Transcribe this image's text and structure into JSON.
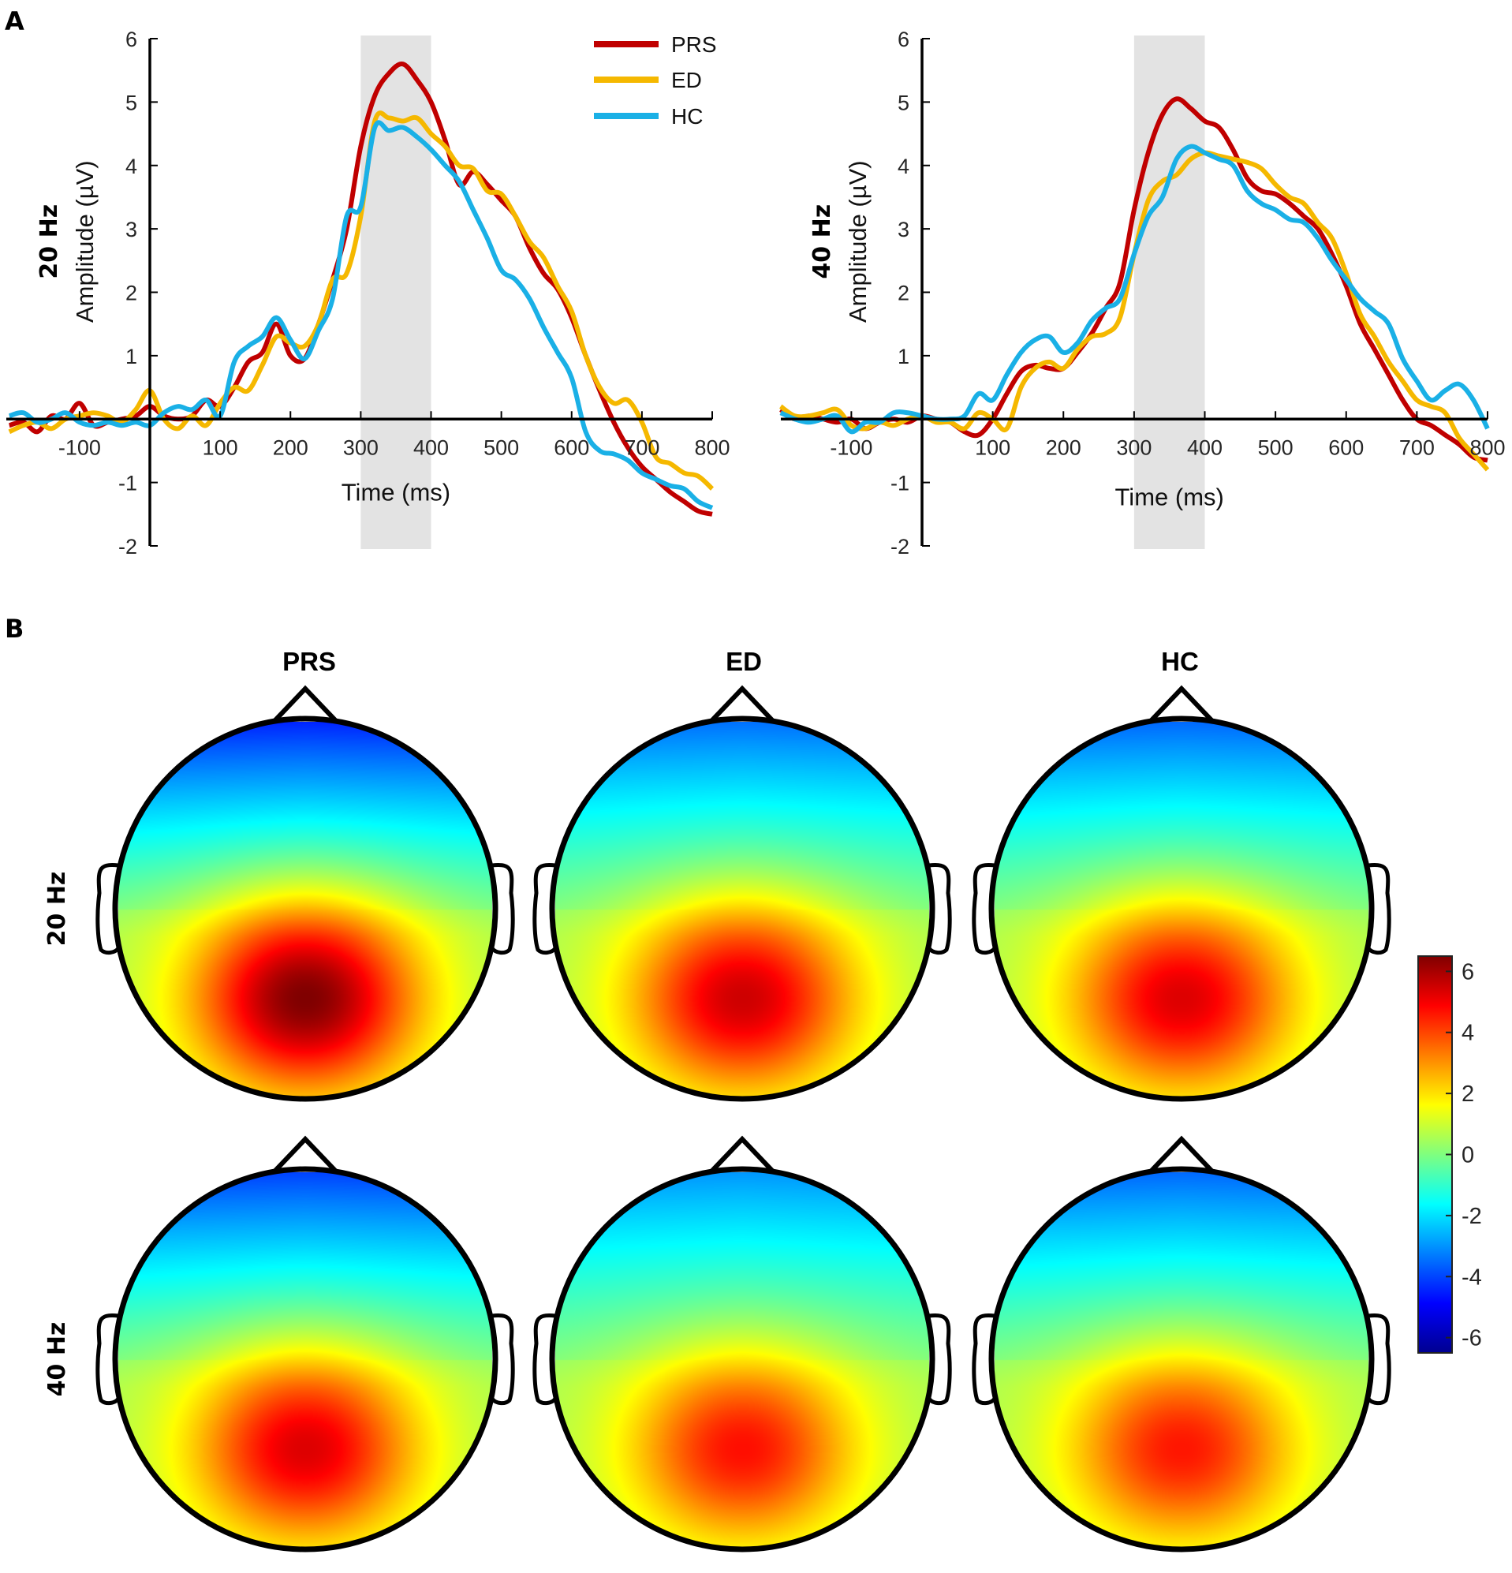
{
  "panel_labels": {
    "a": "A",
    "b": "B"
  },
  "legend": [
    {
      "name": "PRS",
      "color": "#C00000"
    },
    {
      "name": "ED",
      "color": "#F5B800"
    },
    {
      "name": "HC",
      "color": "#1AB0E6"
    }
  ],
  "chart_data": [
    {
      "type": "line",
      "id": "erp-20hz",
      "row_label": "20 Hz",
      "xlabel": "Time (ms)",
      "ylabel": "Amplitude (µV)",
      "xlim": [
        -200,
        800
      ],
      "ylim": [
        -2,
        6
      ],
      "xticks": [
        -100,
        100,
        200,
        300,
        400,
        500,
        600,
        700,
        800
      ],
      "yticks": [
        -2,
        -1,
        1,
        2,
        3,
        4,
        5,
        6
      ],
      "shaded_window": [
        300,
        400
      ],
      "grid": false,
      "legend_position": "top-right",
      "x": [
        -200,
        -180,
        -160,
        -140,
        -120,
        -100,
        -80,
        -60,
        -40,
        -20,
        0,
        20,
        40,
        60,
        80,
        100,
        120,
        140,
        160,
        180,
        200,
        220,
        240,
        260,
        280,
        300,
        320,
        340,
        360,
        380,
        400,
        420,
        440,
        460,
        480,
        500,
        520,
        540,
        560,
        580,
        600,
        620,
        640,
        660,
        680,
        700,
        720,
        740,
        760,
        780,
        800
      ],
      "series": [
        {
          "name": "PRS",
          "values": [
            -0.1,
            -0.05,
            -0.2,
            0.05,
            0.0,
            0.25,
            -0.1,
            -0.05,
            0.0,
            0.05,
            0.2,
            0.05,
            0.0,
            0.05,
            0.3,
            0.2,
            0.5,
            0.9,
            1.05,
            1.5,
            1.0,
            0.95,
            1.5,
            2.2,
            3.0,
            4.3,
            5.1,
            5.45,
            5.6,
            5.35,
            5.0,
            4.4,
            3.7,
            3.9,
            3.7,
            3.45,
            3.2,
            2.7,
            2.3,
            2.05,
            1.6,
            1.0,
            0.45,
            -0.05,
            -0.45,
            -0.75,
            -0.95,
            -1.15,
            -1.3,
            -1.45,
            -1.5
          ]
        },
        {
          "name": "ED",
          "values": [
            -0.2,
            -0.1,
            -0.05,
            -0.15,
            0.0,
            0.05,
            0.1,
            0.05,
            -0.05,
            0.15,
            0.45,
            0.0,
            -0.15,
            0.05,
            -0.1,
            0.25,
            0.5,
            0.45,
            0.85,
            1.3,
            1.2,
            1.15,
            1.5,
            2.2,
            2.3,
            3.2,
            4.7,
            4.75,
            4.7,
            4.75,
            4.5,
            4.3,
            4.0,
            3.95,
            3.6,
            3.55,
            3.2,
            2.8,
            2.55,
            2.1,
            1.7,
            1.0,
            0.5,
            0.25,
            0.3,
            -0.05,
            -0.6,
            -0.7,
            -0.85,
            -0.9,
            -1.1
          ]
        },
        {
          "name": "HC",
          "values": [
            0.05,
            0.1,
            -0.05,
            0.0,
            0.1,
            -0.05,
            -0.1,
            -0.05,
            -0.1,
            -0.05,
            -0.1,
            0.1,
            0.2,
            0.15,
            0.3,
            0.05,
            0.9,
            1.15,
            1.3,
            1.6,
            1.25,
            0.95,
            1.4,
            1.9,
            3.2,
            3.35,
            4.6,
            4.55,
            4.6,
            4.45,
            4.25,
            4.0,
            3.75,
            3.3,
            2.85,
            2.35,
            2.2,
            1.9,
            1.45,
            1.05,
            0.65,
            -0.2,
            -0.5,
            -0.55,
            -0.65,
            -0.85,
            -0.95,
            -1.05,
            -1.1,
            -1.3,
            -1.4
          ]
        }
      ]
    },
    {
      "type": "line",
      "id": "erp-40hz",
      "row_label": "40 Hz",
      "xlabel": "Time (ms)",
      "ylabel": "Amplitude (µV)",
      "xlim": [
        -200,
        800
      ],
      "ylim": [
        -2,
        6
      ],
      "xticks": [
        -100,
        100,
        200,
        300,
        400,
        500,
        600,
        700,
        800
      ],
      "yticks": [
        -2,
        -1,
        1,
        2,
        3,
        4,
        5,
        6
      ],
      "shaded_window": [
        300,
        400
      ],
      "grid": false,
      "x": [
        -200,
        -180,
        -160,
        -140,
        -120,
        -100,
        -80,
        -60,
        -40,
        -20,
        0,
        20,
        40,
        60,
        80,
        100,
        120,
        140,
        160,
        180,
        200,
        220,
        240,
        260,
        280,
        300,
        320,
        340,
        360,
        380,
        400,
        420,
        440,
        460,
        480,
        500,
        520,
        540,
        560,
        580,
        600,
        620,
        640,
        660,
        680,
        700,
        720,
        740,
        760,
        780,
        800
      ],
      "series": [
        {
          "name": "PRS",
          "values": [
            0.15,
            0.0,
            0.05,
            0.0,
            -0.05,
            0.0,
            -0.15,
            -0.05,
            0.0,
            -0.05,
            0.05,
            0.0,
            -0.05,
            -0.2,
            -0.25,
            0.0,
            0.4,
            0.75,
            0.85,
            0.8,
            0.8,
            1.05,
            1.35,
            1.75,
            2.15,
            3.3,
            4.2,
            4.8,
            5.05,
            4.9,
            4.7,
            4.6,
            4.25,
            3.8,
            3.6,
            3.55,
            3.4,
            3.2,
            3.0,
            2.6,
            2.1,
            1.5,
            1.1,
            0.7,
            0.3,
            0.0,
            -0.1,
            -0.25,
            -0.4,
            -0.6,
            -0.65
          ]
        },
        {
          "name": "ED",
          "values": [
            0.2,
            0.05,
            0.05,
            0.1,
            0.15,
            -0.1,
            -0.15,
            -0.05,
            -0.1,
            0.0,
            0.05,
            -0.05,
            -0.05,
            -0.15,
            0.1,
            0.0,
            -0.15,
            0.5,
            0.8,
            0.9,
            0.8,
            1.1,
            1.3,
            1.35,
            1.6,
            2.6,
            3.45,
            3.75,
            3.85,
            4.1,
            4.2,
            4.15,
            4.1,
            4.05,
            3.95,
            3.7,
            3.5,
            3.4,
            3.1,
            2.85,
            2.3,
            1.65,
            1.3,
            0.9,
            0.6,
            0.3,
            0.2,
            0.1,
            -0.3,
            -0.55,
            -0.8
          ]
        },
        {
          "name": "HC",
          "values": [
            0.1,
            0.0,
            -0.05,
            0.0,
            0.05,
            -0.2,
            -0.05,
            -0.05,
            0.1,
            0.1,
            0.05,
            0.0,
            0.0,
            0.05,
            0.4,
            0.3,
            0.7,
            1.05,
            1.25,
            1.3,
            1.05,
            1.2,
            1.55,
            1.75,
            1.9,
            2.6,
            3.2,
            3.5,
            4.1,
            4.3,
            4.2,
            4.1,
            4.0,
            3.6,
            3.4,
            3.3,
            3.15,
            3.1,
            2.85,
            2.5,
            2.2,
            1.9,
            1.7,
            1.5,
            0.95,
            0.6,
            0.3,
            0.45,
            0.55,
            0.3,
            -0.15
          ]
        }
      ]
    },
    {
      "type": "heatmap",
      "id": "topomaps",
      "description": "Scalp topographies (300-400 ms window)",
      "columns": [
        "PRS",
        "ED",
        "HC"
      ],
      "rows": [
        "20 Hz",
        "40 Hz"
      ],
      "colorbar": {
        "colormap": "jet",
        "range": [
          -6.5,
          6.5
        ],
        "ticks": [
          6,
          4,
          2,
          0,
          -2,
          -4,
          -6
        ]
      },
      "maps": [
        {
          "row": "20 Hz",
          "group": "PRS",
          "posterior_max": 6.2,
          "frontal_min": -4.8
        },
        {
          "row": "20 Hz",
          "group": "ED",
          "posterior_max": 5.2,
          "frontal_min": -3.8
        },
        {
          "row": "20 Hz",
          "group": "HC",
          "posterior_max": 5.0,
          "frontal_min": -3.9
        },
        {
          "row": "40 Hz",
          "group": "PRS",
          "posterior_max": 5.0,
          "frontal_min": -4.4
        },
        {
          "row": "40 Hz",
          "group": "ED",
          "posterior_max": 4.4,
          "frontal_min": -3.3
        },
        {
          "row": "40 Hz",
          "group": "HC",
          "posterior_max": 4.3,
          "frontal_min": -3.9
        }
      ]
    }
  ]
}
